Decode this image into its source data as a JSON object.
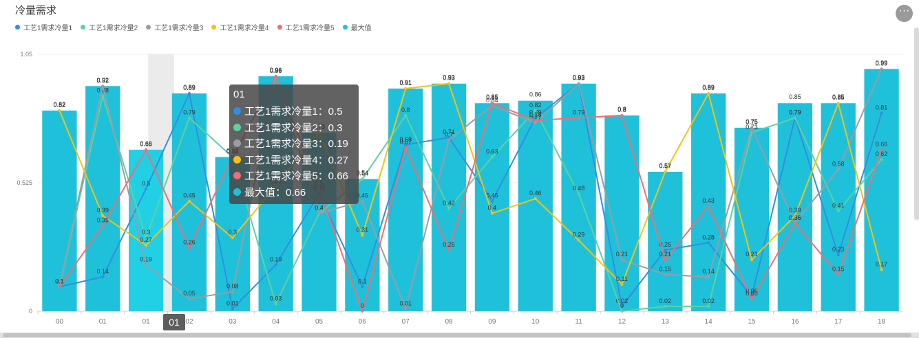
{
  "header": {
    "title": "冷量需求",
    "more_icon": "more-icon"
  },
  "chart_data": {
    "type": "bar+line",
    "title": "冷量需求",
    "categories": [
      "00",
      "01",
      "01",
      "02",
      "03",
      "04",
      "05",
      "06",
      "07",
      "08",
      "09",
      "10",
      "11",
      "12",
      "13",
      "14",
      "15",
      "16",
      "17",
      "18"
    ],
    "ylim": [
      0,
      1.05
    ],
    "yticks": [
      "0",
      "0.525",
      "1.05"
    ],
    "grid": true,
    "legend_position": "top-left",
    "bar_series": {
      "name": "最大值",
      "color": "#1fc1da",
      "values": [
        0.82,
        0.92,
        0.66,
        0.89,
        0.63,
        0.96,
        0.73,
        0.54,
        0.91,
        0.93,
        0.85,
        0.86,
        0.93,
        0.8,
        0.57,
        0.89,
        0.75,
        0.85,
        0.85,
        0.99
      ]
    },
    "line_series": [
      {
        "name": "工艺1需求冷量1",
        "color": "#2f8fe0",
        "values": [
          0.1,
          0.14,
          0.5,
          0.89,
          0.01,
          0.19,
          0.48,
          0.1,
          0.68,
          0.71,
          0.45,
          0.79,
          0.93,
          0.02,
          0.25,
          0.28,
          0.06,
          0.79,
          0.23,
          0.81
        ]
      },
      {
        "name": "工艺1需求冷量2",
        "color": "#5fd1a1",
        "values": [
          0.1,
          0.88,
          0.3,
          0.79,
          0.63,
          0.03,
          0.4,
          0.54,
          0.8,
          0.42,
          0.63,
          0.82,
          0.48,
          0.0,
          0.02,
          0.02,
          0.73,
          0.79,
          0.41,
          0.62
        ]
      },
      {
        "name": "工艺1需求冷量3",
        "color": "#9b9ca4",
        "values": [
          0.1,
          0.92,
          0.19,
          0.05,
          0.08,
          0.96,
          0.4,
          0.45,
          0.01,
          0.7,
          0.84,
          0.77,
          0.93,
          0.21,
          0.15,
          0.14,
          0.75,
          0.36,
          0.58,
          0.99
        ]
      },
      {
        "name": "工艺1需求冷量4",
        "color": "#f5c211",
        "values": [
          0.82,
          0.39,
          0.27,
          0.45,
          0.3,
          0.51,
          0.73,
          0.31,
          0.91,
          0.93,
          0.4,
          0.46,
          0.29,
          0.11,
          0.57,
          0.89,
          0.21,
          0.39,
          0.85,
          0.17
        ]
      },
      {
        "name": "工艺1需求冷量5",
        "color": "#ef6e73",
        "values": [
          0.1,
          0.35,
          0.66,
          0.26,
          0.63,
          0.96,
          0.5,
          0.0,
          0.67,
          0.25,
          0.85,
          0.78,
          0.79,
          0.8,
          0.21,
          0.43,
          0.05,
          0.36,
          0.15,
          0.66
        ]
      }
    ],
    "highlight_index": 2,
    "highlight_label": "01",
    "tooltip": {
      "title": "01",
      "rows": [
        {
          "label": "工艺1需求冷量1：0.5",
          "color": "#2f8fe0"
        },
        {
          "label": "工艺1需求冷量2：0.3",
          "color": "#5fd1a1"
        },
        {
          "label": "工艺1需求冷量3：0.19",
          "color": "#9b9ca4"
        },
        {
          "label": "工艺1需求冷量4：0.27",
          "color": "#f5c211"
        },
        {
          "label": "工艺1需求冷量5：0.66",
          "color": "#ef6e73"
        },
        {
          "label": "最大值：0.66",
          "color": "#1fc1da"
        }
      ]
    }
  }
}
